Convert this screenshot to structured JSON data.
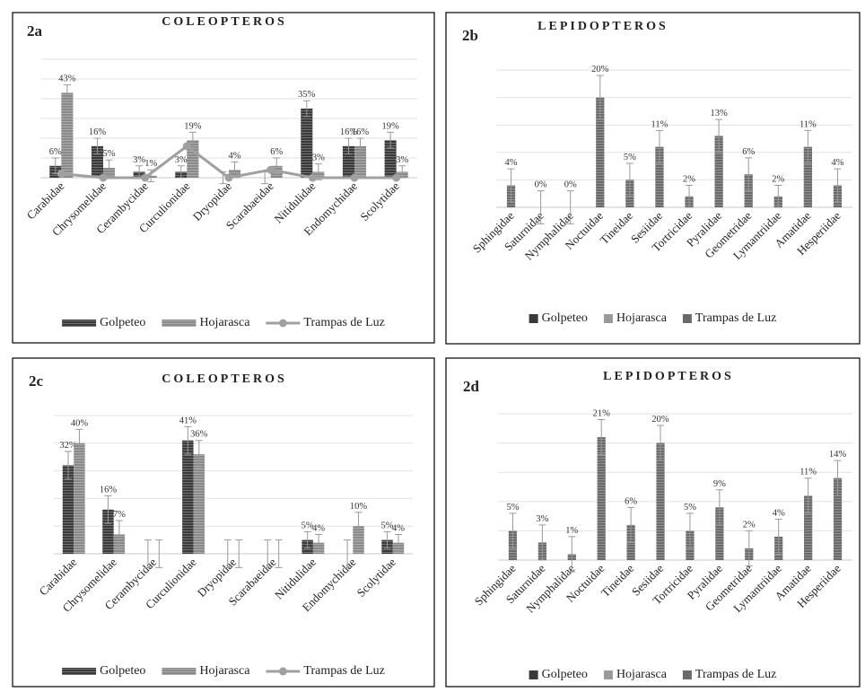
{
  "chart_data": [
    {
      "type": "bar",
      "panel": "2a",
      "title": "COLEOPTEROS",
      "legend_marker": "line",
      "grid": true,
      "categories": [
        "Carabidae",
        "Chrysomelidae",
        "Cerambycidae",
        "Curculionidae",
        "Dryopidae",
        "Scarabaeidae",
        "Nitidulidae",
        "Endomychidae",
        "Scolytidae"
      ],
      "ylim": [
        0,
        60
      ],
      "yticks": [
        0,
        10,
        20,
        30,
        40,
        50,
        60
      ],
      "series": [
        {
          "name": "Golpeteo",
          "color": "#3a3a3a",
          "values": [
            6,
            16,
            3,
            3,
            0,
            0,
            35,
            16,
            19
          ],
          "errors": [
            4,
            4,
            3,
            3,
            3,
            3,
            4,
            4,
            4
          ],
          "value_labels": [
            "6%",
            "16%",
            "3%",
            "3%",
            null,
            null,
            "35%",
            "16%",
            "19%"
          ]
        },
        {
          "name": "Hojarasca",
          "color": "#8a8a8a",
          "values": [
            43,
            5,
            1,
            19,
            4,
            6,
            3,
            16,
            3
          ],
          "errors": [
            4,
            4,
            3,
            4,
            4,
            4,
            4,
            4,
            3
          ],
          "value_labels": [
            "43%",
            "5%",
            "1%",
            "19%",
            "4%",
            "6%",
            "3%",
            "16%",
            "3%"
          ]
        },
        {
          "name": "Trampas de Luz",
          "type": "line",
          "color": "#a0a0a0",
          "values": [
            2,
            0,
            0,
            16,
            0,
            4,
            0,
            0,
            0
          ]
        }
      ]
    },
    {
      "type": "bar",
      "panel": "2b",
      "title": "LEPIDOPTEROS",
      "legend_marker": "square",
      "grid": true,
      "categories": [
        "Sphingidae",
        "Saturnidae",
        "Nymphalidae",
        "Noctuidae",
        "Tineidae",
        "Sesiidae",
        "Tortricidae",
        "Pyralidae",
        "Geometridae",
        "Lymantriidae",
        "Amatidae",
        "Hesperiidae"
      ],
      "ylim": [
        0,
        25
      ],
      "yticks": [
        0,
        5,
        10,
        15,
        20,
        25
      ],
      "series": [
        {
          "name": "Golpeteo",
          "color": "#3a3a3a",
          "values": [
            null,
            null,
            null,
            null,
            null,
            null,
            null,
            null,
            null,
            null,
            null,
            null
          ]
        },
        {
          "name": "Hojarasca",
          "color": "#9a9a9a",
          "values": [
            null,
            null,
            null,
            null,
            null,
            null,
            null,
            null,
            null,
            null,
            null,
            null
          ]
        },
        {
          "name": "Trampas de Luz",
          "color": "#6a6a6a",
          "values": [
            4,
            0,
            0,
            20,
            5,
            11,
            2,
            13,
            6,
            2,
            11,
            4
          ],
          "errors": [
            3,
            3,
            3,
            4,
            3,
            3,
            2,
            3,
            3,
            2,
            3,
            3
          ],
          "value_labels": [
            "4%",
            "0%",
            "0%",
            "20%",
            "5%",
            "11%",
            "2%",
            "13%",
            "6%",
            "2%",
            "11%",
            "4%"
          ]
        }
      ]
    },
    {
      "type": "bar",
      "panel": "2c",
      "title": "COLEOPTEROS",
      "legend_marker": "line",
      "grid": true,
      "categories": [
        "Carabidae",
        "Chrysomelidae",
        "Cerambycidae",
        "Curculionidae",
        "Dryopidae",
        "Scarabaeidae",
        "Nitidulidae",
        "Endomychidae",
        "Scolytidae"
      ],
      "ylim": [
        0,
        50
      ],
      "yticks": [
        0,
        10,
        20,
        30,
        40,
        50
      ],
      "series": [
        {
          "name": "Golpeteo",
          "color": "#3a3a3a",
          "values": [
            32,
            16,
            0,
            41,
            0,
            0,
            5,
            0,
            5
          ],
          "errors": [
            5,
            5,
            5,
            5,
            5,
            5,
            3,
            5,
            3
          ],
          "value_labels": [
            "32%",
            "16%",
            null,
            "41%",
            null,
            null,
            "5%",
            null,
            "5%"
          ]
        },
        {
          "name": "Hojarasca",
          "color": "#8a8a8a",
          "values": [
            40,
            7,
            0,
            36,
            0,
            0,
            4,
            10,
            4
          ],
          "errors": [
            5,
            5,
            5,
            5,
            5,
            5,
            3,
            5,
            3
          ],
          "value_labels": [
            "40%",
            "7%",
            null,
            "36%",
            null,
            null,
            "4%",
            "10%",
            "4%"
          ]
        },
        {
          "name": "Trampas de Luz",
          "type": "line",
          "color": "#a0a0a0",
          "values": [
            null,
            null,
            null,
            null,
            null,
            null,
            null,
            null,
            null
          ]
        }
      ]
    },
    {
      "type": "bar",
      "panel": "2d",
      "title": "LEPIDOPTEROS",
      "legend_marker": "square",
      "grid": true,
      "categories": [
        "Sphingidae",
        "Saturnidae",
        "Nymphalidae",
        "Noctuidae",
        "Tineidae",
        "Sesiidae",
        "Tortricidae",
        "Pyralidae",
        "Geometridae",
        "Lymantriidae",
        "Amatidae",
        "Hesperiidae"
      ],
      "ylim": [
        0,
        25
      ],
      "yticks": [
        0,
        5,
        10,
        15,
        20,
        25
      ],
      "series": [
        {
          "name": "Golpeteo",
          "color": "#3a3a3a",
          "values": [
            null,
            null,
            null,
            null,
            null,
            null,
            null,
            null,
            null,
            null,
            null,
            null
          ]
        },
        {
          "name": "Hojarasca",
          "color": "#9a9a9a",
          "values": [
            null,
            null,
            null,
            null,
            null,
            null,
            null,
            null,
            null,
            null,
            null,
            null
          ]
        },
        {
          "name": "Trampas de Luz",
          "color": "#6a6a6a",
          "values": [
            5,
            3,
            1,
            21,
            6,
            20,
            5,
            9,
            2,
            4,
            11,
            14
          ],
          "errors": [
            3,
            3,
            3,
            3,
            3,
            3,
            3,
            3,
            3,
            3,
            3,
            3
          ],
          "value_labels": [
            "5%",
            "3%",
            "1%",
            "21%",
            "6%",
            "20%",
            "5%",
            "9%",
            "2%",
            "4%",
            "11%",
            "14%"
          ]
        }
      ]
    }
  ]
}
